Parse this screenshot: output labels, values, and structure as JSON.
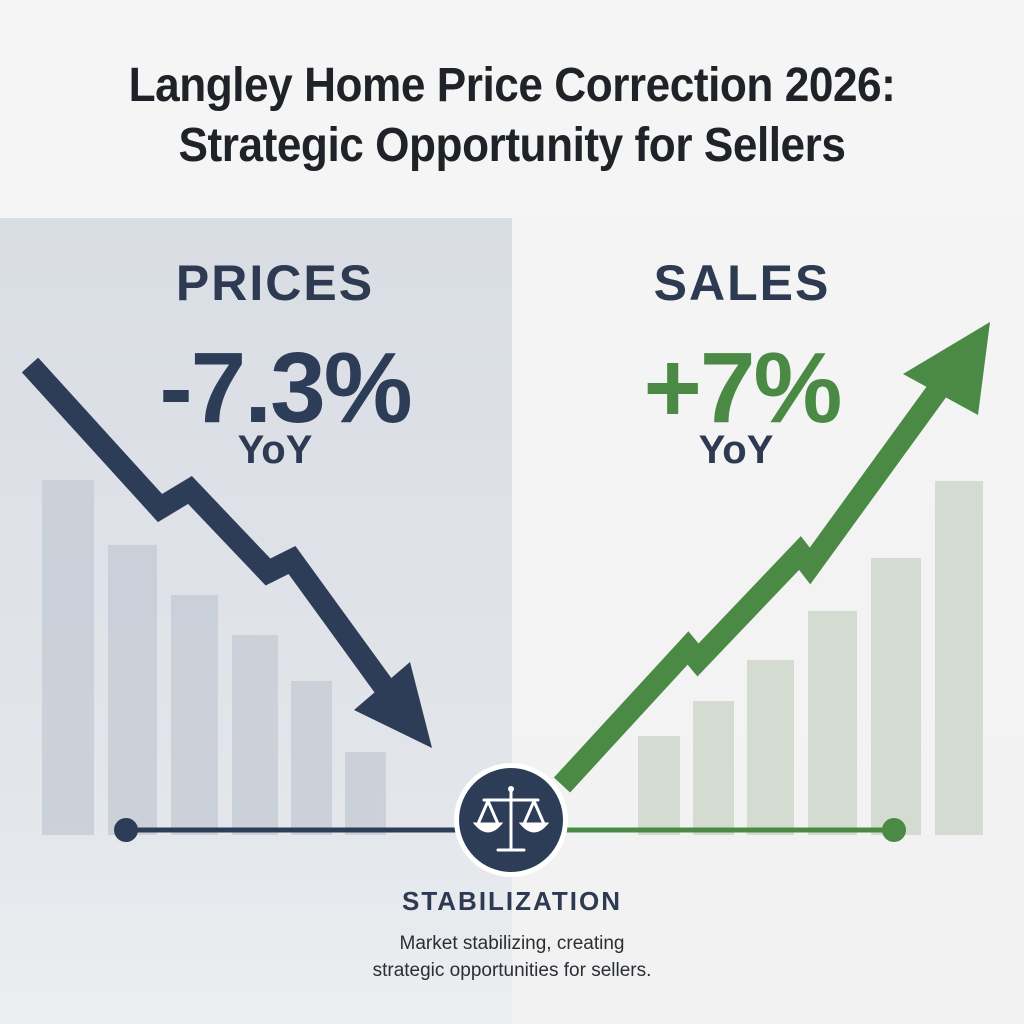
{
  "title": {
    "line1": "Langley Home Price Correction 2026:",
    "line2": "Strategic Opportunity for Sellers"
  },
  "prices": {
    "label": "PRICES",
    "value": "-7.3%",
    "period": "YoY",
    "color": "#2d3d57"
  },
  "sales": {
    "label": "SALES",
    "value": "+7%",
    "period": "YoY",
    "color": "#4a8a45"
  },
  "stabilization": {
    "title": "STABILIZATION",
    "description_line1": "Market stabilizing, creating",
    "description_line2": "strategic opportunities for sellers.",
    "icon": "scales-icon"
  }
}
